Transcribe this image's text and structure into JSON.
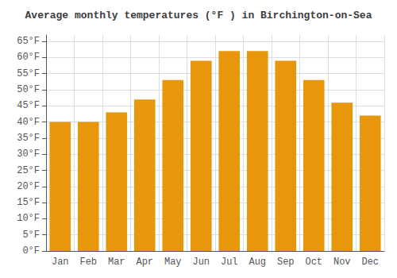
{
  "chart_data": {
    "type": "bar",
    "title": "Average monthly temperatures (°F ) in Birchington-on-Sea",
    "categories": [
      "Jan",
      "Feb",
      "Mar",
      "Apr",
      "May",
      "Jun",
      "Jul",
      "Aug",
      "Sep",
      "Oct",
      "Nov",
      "Dec"
    ],
    "values": [
      40,
      40,
      43,
      47,
      53,
      59,
      62,
      62,
      59,
      53,
      46,
      42
    ],
    "color": "#E8960C",
    "ylim": [
      0,
      67
    ],
    "yticks": [
      {
        "value": 0,
        "label": "0°F"
      },
      {
        "value": 5,
        "label": "5°F"
      },
      {
        "value": 10,
        "label": "10°F"
      },
      {
        "value": 15,
        "label": "15°F"
      },
      {
        "value": 20,
        "label": "20°F"
      },
      {
        "value": 25,
        "label": "25°F"
      },
      {
        "value": 30,
        "label": "30°F"
      },
      {
        "value": 35,
        "label": "35°F"
      },
      {
        "value": 40,
        "label": "40°F"
      },
      {
        "value": 45,
        "label": "45°F"
      },
      {
        "value": 50,
        "label": "50°F"
      },
      {
        "value": 55,
        "label": "55°F"
      },
      {
        "value": 60,
        "label": "60°F"
      },
      {
        "value": 65,
        "label": "65°F"
      }
    ],
    "grid": true
  }
}
